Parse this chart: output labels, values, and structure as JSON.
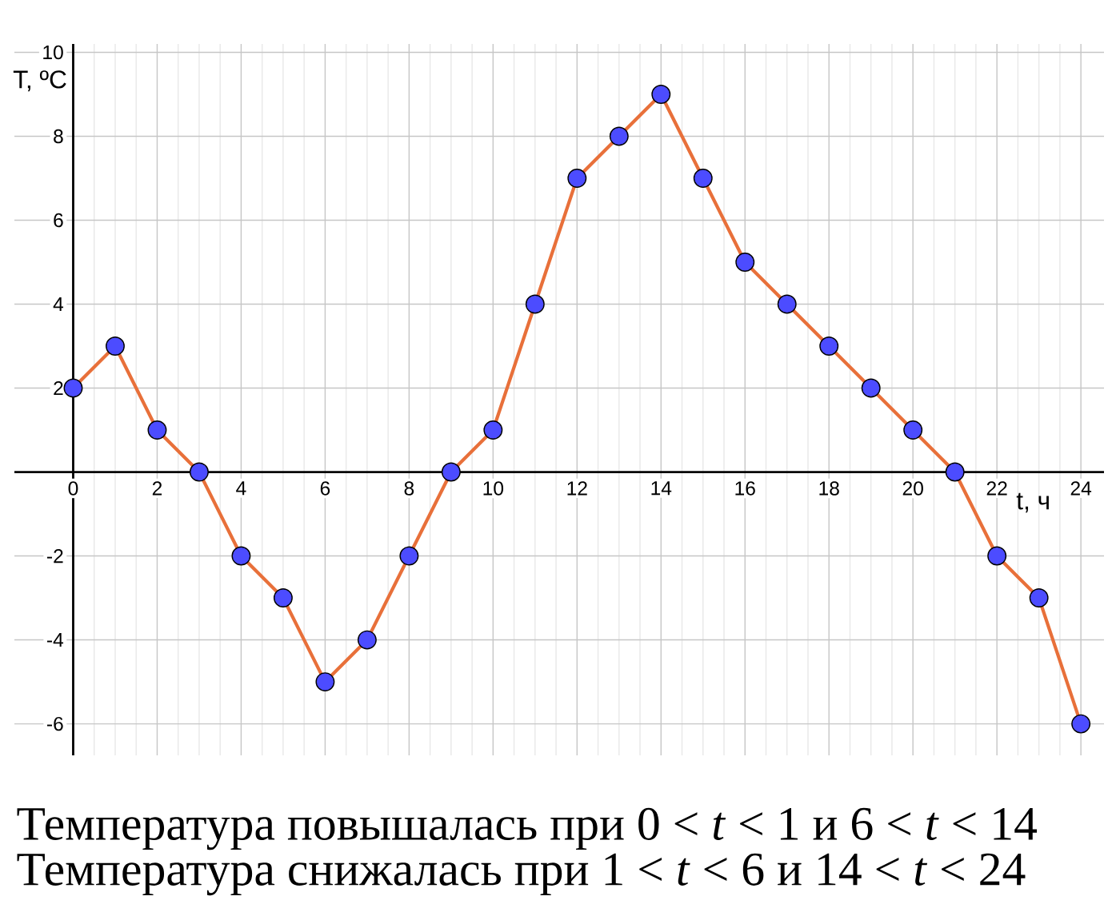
{
  "chart_data": {
    "type": "line",
    "xlabel": "t, ч",
    "ylabel": "T, ºC",
    "x": [
      0,
      1,
      2,
      3,
      4,
      5,
      6,
      7,
      8,
      9,
      10,
      11,
      12,
      13,
      14,
      15,
      16,
      17,
      18,
      19,
      20,
      21,
      22,
      23,
      24
    ],
    "series": [
      {
        "color": "#e8703a",
        "values": [
          2,
          3,
          1,
          0,
          -2,
          -3,
          -5,
          -4,
          -2,
          0,
          1,
          4,
          7,
          8,
          9,
          7,
          5,
          4,
          3,
          2,
          1,
          0,
          -2,
          -3,
          -6
        ]
      }
    ],
    "xlim": [
      -1.4,
      24.55
    ],
    "ylim": [
      -6.75,
      10.2
    ],
    "xticks": [
      0,
      2,
      4,
      6,
      8,
      10,
      12,
      14,
      16,
      18,
      20,
      22,
      24
    ],
    "yticks": [
      -6,
      -4,
      -2,
      2,
      4,
      6,
      8,
      10
    ],
    "grid": true,
    "marker": "circle",
    "line_style": "solid",
    "annotations": [
      "Температура повышалась при 0 < *t* < 1 и 6 < *t* < 14",
      "Температура снижалась при 1 < *t* < 6 и 14 < *t* < 24"
    ]
  }
}
